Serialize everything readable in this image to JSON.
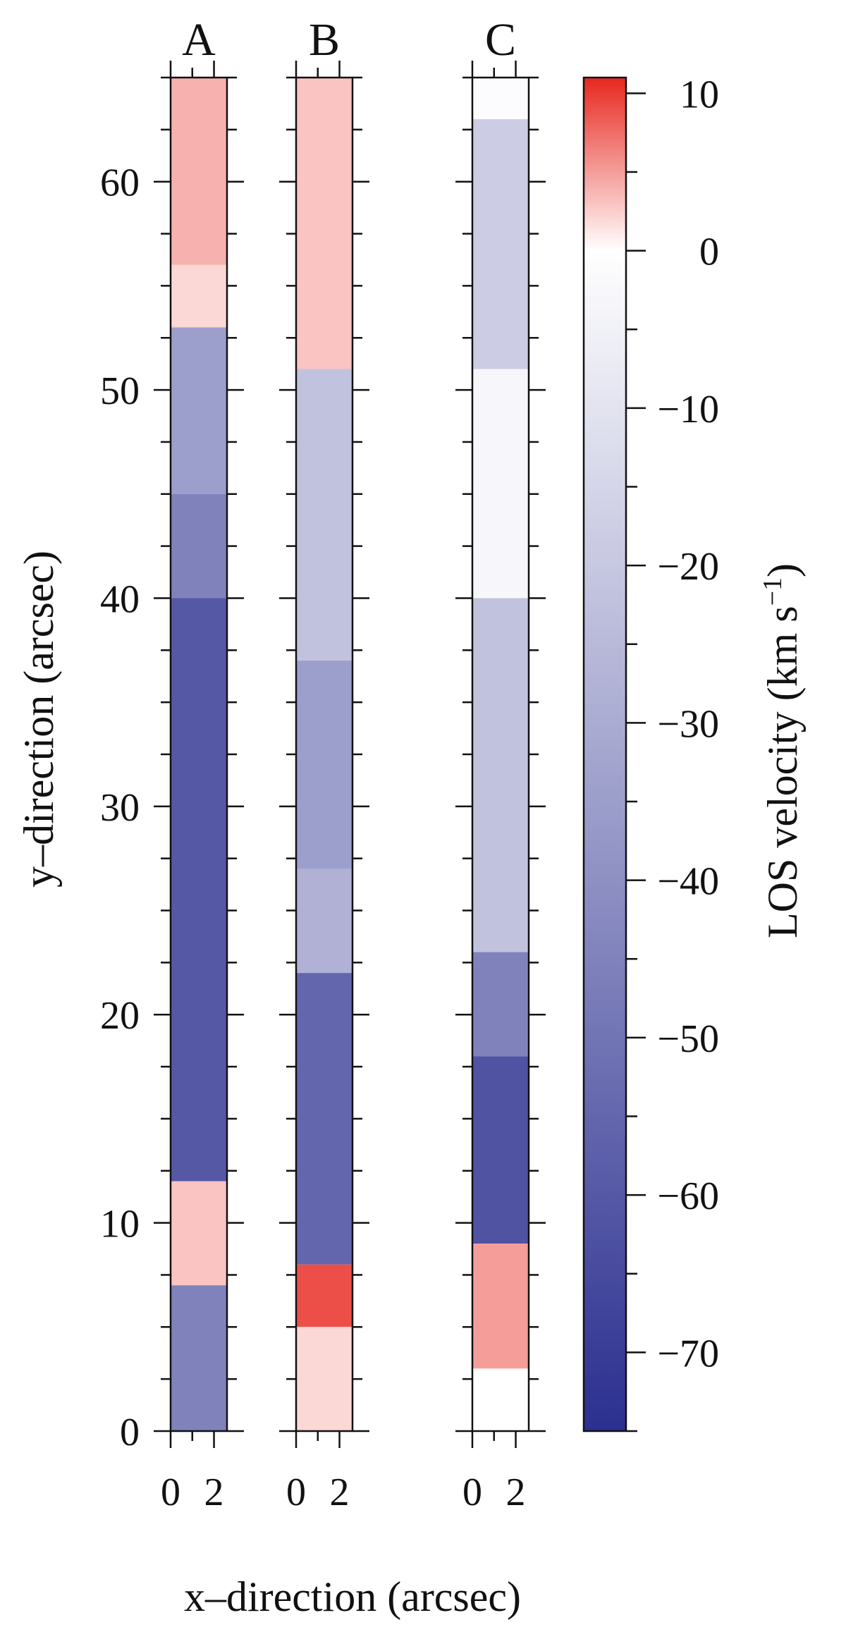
{
  "chart_data": {
    "type": "heatmap",
    "panels": [
      {
        "label": "A",
        "x_ticks": [
          "0",
          "2"
        ],
        "regions": [
          {
            "y_range": [
              56,
              65
            ],
            "velocity": 4
          },
          {
            "y_range": [
              53,
              56
            ],
            "velocity": 2
          },
          {
            "y_range": [
              45,
              53
            ],
            "velocity": -35
          },
          {
            "y_range": [
              40,
              45
            ],
            "velocity": -45
          },
          {
            "y_range": [
              12,
              40
            ],
            "velocity": -60
          },
          {
            "y_range": [
              7,
              12
            ],
            "velocity": 3
          },
          {
            "y_range": [
              0,
              7
            ],
            "velocity": -45
          }
        ]
      },
      {
        "label": "B",
        "x_ticks": [
          "0",
          "2"
        ],
        "regions": [
          {
            "y_range": [
              51,
              65
            ],
            "velocity": 3
          },
          {
            "y_range": [
              37,
              51
            ],
            "velocity": -22
          },
          {
            "y_range": [
              27,
              37
            ],
            "velocity": -35
          },
          {
            "y_range": [
              22,
              27
            ],
            "velocity": -28
          },
          {
            "y_range": [
              8,
              22
            ],
            "velocity": -55
          },
          {
            "y_range": [
              5,
              8
            ],
            "velocity": 9
          },
          {
            "y_range": [
              0,
              5
            ],
            "velocity": 2
          }
        ]
      },
      {
        "label": "C",
        "x_ticks": [
          "0",
          "2"
        ],
        "regions": [
          {
            "y_range": [
              63,
              65
            ],
            "velocity": -1
          },
          {
            "y_range": [
              51,
              63
            ],
            "velocity": -18
          },
          {
            "y_range": [
              40,
              51
            ],
            "velocity": -3
          },
          {
            "y_range": [
              23,
              40
            ],
            "velocity": -22
          },
          {
            "y_range": [
              18,
              23
            ],
            "velocity": -45
          },
          {
            "y_range": [
              9,
              18
            ],
            "velocity": -62
          },
          {
            "y_range": [
              3,
              9
            ],
            "velocity": 5
          },
          {
            "y_range": [
              0,
              3
            ],
            "velocity": 0
          }
        ]
      }
    ],
    "y_axis": {
      "label": "y–direction   (arcsec)",
      "range": [
        0,
        65
      ],
      "ticks": [
        0,
        10,
        20,
        30,
        40,
        50,
        60
      ],
      "tick_labels": [
        "0",
        "10",
        "20",
        "30",
        "40",
        "50",
        "60"
      ]
    },
    "x_axis": {
      "label": "x–direction   (arcsec)",
      "range": [
        0,
        2.6
      ],
      "ticks": [
        0,
        2
      ]
    },
    "colorbar": {
      "label": "LOS velocity   (km s",
      "label_superscript": "−1",
      "label_close": ")",
      "range": [
        -75,
        11
      ],
      "ticks": [
        10,
        0,
        -10,
        -20,
        -30,
        -40,
        -50,
        -60,
        -70
      ],
      "tick_labels": [
        "10",
        "0",
        "−10",
        "−20",
        "−30",
        "−40",
        "−50",
        "−60",
        "−70"
      ],
      "colors": {
        "min": "#2b2f8f",
        "mid": "#ffffff",
        "max": "#e8281f"
      }
    }
  }
}
